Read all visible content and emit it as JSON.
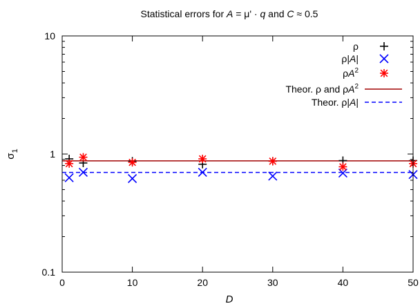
{
  "chart_data": {
    "type": "scatter",
    "title": "Statistical errors for A = μ' · q and C ≈ 0.5",
    "title_parts": {
      "prefix": "Statistical errors for ",
      "var_a": "A",
      "middle": " = μ' · ",
      "var_q": "q",
      "join": " and ",
      "var_c": "C",
      "suffix": " ≈ 0.5"
    },
    "xlabel": "D",
    "ylabel": "σ",
    "ylabel_subscript": "1",
    "x_scale": "linear",
    "y_scale": "log",
    "xlim": [
      0,
      50
    ],
    "ylim": [
      0.1,
      10
    ],
    "x_ticks": [
      0,
      10,
      20,
      30,
      40,
      50
    ],
    "x_tick_labels": [
      "0",
      "10",
      "20",
      "30",
      "40",
      "50"
    ],
    "y_ticks": [
      0.1,
      1,
      10
    ],
    "y_tick_labels": [
      "0.1",
      "1",
      "10"
    ],
    "grid": false,
    "legend_position": "top-right",
    "series": [
      {
        "name": "ρ",
        "legend_parts": [
          "ρ"
        ],
        "marker": "plus",
        "color": "#000000",
        "x": [
          1,
          3,
          10,
          20,
          30,
          40,
          50
        ],
        "y": [
          0.91,
          0.84,
          0.87,
          0.82,
          0.87,
          0.88,
          0.88
        ]
      },
      {
        "name": "ρ|A|",
        "legend_parts": [
          "ρ|",
          "A",
          "|"
        ],
        "marker": "cross",
        "color": "#0000ff",
        "x": [
          1,
          3,
          10,
          20,
          30,
          40,
          50
        ],
        "y": [
          0.63,
          0.7,
          0.62,
          0.7,
          0.65,
          0.69,
          0.67
        ]
      },
      {
        "name": "ρA²",
        "legend_parts": [
          "ρ",
          "A",
          "2"
        ],
        "marker": "star",
        "color": "#ff0000",
        "x": [
          1,
          3,
          10,
          20,
          30,
          40,
          50
        ],
        "y": [
          0.83,
          0.94,
          0.85,
          0.91,
          0.87,
          0.78,
          0.83
        ]
      }
    ],
    "lines": [
      {
        "name": "Theor. ρ and ρA²",
        "legend_parts": [
          "Theor. ρ and ρ",
          "A",
          "2"
        ],
        "style": "solid",
        "color": "#a00000",
        "y": 0.876
      },
      {
        "name": "Theor. ρ|A|",
        "legend_parts": [
          "Theor. ρ|",
          "A",
          "|"
        ],
        "style": "dashed",
        "color": "#0000ff",
        "y": 0.699
      }
    ]
  }
}
